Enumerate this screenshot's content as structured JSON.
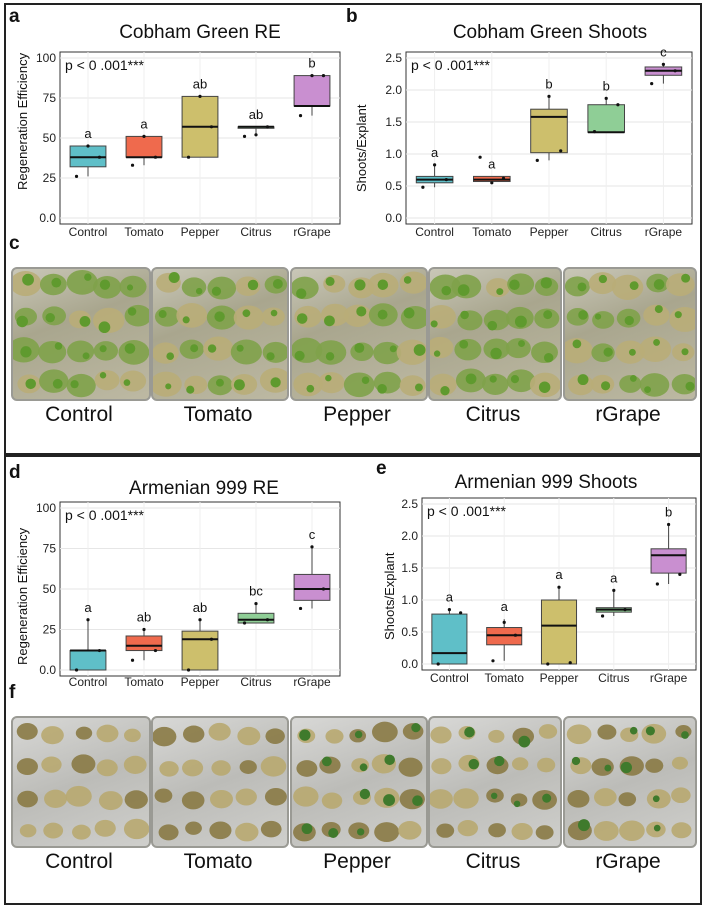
{
  "panels": {
    "top_labels": [
      "a",
      "b",
      "c"
    ],
    "bottom_labels": [
      "d",
      "e",
      "f"
    ]
  },
  "photo_rows": [
    {
      "labels": [
        "Control",
        "Tomato",
        "Pepper",
        "Citrus",
        "rGrape"
      ]
    },
    {
      "labels": [
        "Control",
        "Tomato",
        "Pepper",
        "Citrus",
        "rGrape"
      ]
    }
  ],
  "chart_data": [
    {
      "type": "box",
      "title": "Cobham Green RE",
      "ylabel": "Regeneration Efficiency",
      "xlabel": "",
      "annotation": "p < 0 .001***",
      "ylim": [
        0,
        100
      ],
      "yticks": [
        "0.0",
        "25",
        "50",
        "75",
        "100"
      ],
      "ytick_values": [
        0,
        25,
        50,
        75,
        100
      ],
      "categories": [
        "Control",
        "Tomato",
        "Pepper",
        "Citrus",
        "rGrape"
      ],
      "colors": [
        "#5fbfc8",
        "#ef6a4d",
        "#cdbf6c",
        "#8fce96",
        "#c98fd0"
      ],
      "letters": [
        "a",
        "a",
        "ab",
        "ab",
        "b"
      ],
      "boxes": [
        {
          "q1": 32,
          "median": 38,
          "q3": 45,
          "lo": 26,
          "hi": 45
        },
        {
          "q1": 38,
          "median": 38,
          "q3": 51,
          "lo": 33,
          "hi": 51
        },
        {
          "q1": 38,
          "median": 57,
          "q3": 76,
          "lo": 38,
          "hi": 76
        },
        {
          "q1": 57,
          "median": 57,
          "q3": 57,
          "lo": 51,
          "hi": 57
        },
        {
          "q1": 70,
          "median": 70,
          "q3": 89,
          "lo": 64,
          "hi": 89
        }
      ],
      "points": [
        [
          26,
          45,
          38
        ],
        [
          33,
          51,
          38
        ],
        [
          38,
          76,
          57
        ],
        [
          51,
          52,
          57
        ],
        [
          64,
          89,
          89
        ]
      ]
    },
    {
      "type": "box",
      "title": "Cobham Green Shoots",
      "ylabel": "Shoots/Explant",
      "xlabel": "",
      "annotation": "p < 0 .001***",
      "ylim": [
        0,
        2.5
      ],
      "yticks": [
        "0.0",
        "0.5",
        "1.0",
        "1.5",
        "2.0",
        "2.5"
      ],
      "ytick_values": [
        0,
        0.5,
        1.0,
        1.5,
        2.0,
        2.5
      ],
      "categories": [
        "Control",
        "Tomato",
        "Pepper",
        "Citrus",
        "rGrape"
      ],
      "colors": [
        "#5fbfc8",
        "#ef6a4d",
        "#cdbf6c",
        "#8fce96",
        "#c98fd0"
      ],
      "letters": [
        "a",
        "a",
        "b",
        "b",
        "c"
      ],
      "boxes": [
        {
          "q1": 0.55,
          "median": 0.6,
          "q3": 0.65,
          "lo": 0.48,
          "hi": 0.83
        },
        {
          "q1": 0.57,
          "median": 0.6,
          "q3": 0.65,
          "lo": 0.55,
          "hi": 0.65
        },
        {
          "q1": 1.02,
          "median": 1.58,
          "q3": 1.7,
          "lo": 0.9,
          "hi": 1.9
        },
        {
          "q1": 1.34,
          "median": 1.34,
          "q3": 1.77,
          "lo": 1.34,
          "hi": 1.87
        },
        {
          "q1": 2.23,
          "median": 2.3,
          "q3": 2.36,
          "lo": 2.1,
          "hi": 2.4
        }
      ],
      "points": [
        [
          0.48,
          0.83,
          0.6
        ],
        [
          0.95,
          0.55,
          0.62
        ],
        [
          0.9,
          1.9,
          1.05
        ],
        [
          1.35,
          1.87,
          1.77
        ],
        [
          2.1,
          2.4,
          2.3
        ]
      ]
    },
    {
      "type": "box",
      "title": "Armenian 999 RE",
      "ylabel": "Regeneration Efficiency",
      "xlabel": "",
      "annotation": "p < 0 .001***",
      "ylim": [
        0,
        100
      ],
      "yticks": [
        "0.0",
        "25",
        "50",
        "75",
        "100"
      ],
      "ytick_values": [
        0,
        25,
        50,
        75,
        100
      ],
      "categories": [
        "Control",
        "Tomato",
        "Pepper",
        "Citrus",
        "rGrape"
      ],
      "colors": [
        "#5fbfc8",
        "#ef6a4d",
        "#cdbf6c",
        "#8fce96",
        "#c98fd0"
      ],
      "letters": [
        "a",
        "ab",
        "ab",
        "bc",
        "c"
      ],
      "boxes": [
        {
          "q1": 0,
          "median": 12,
          "q3": 12,
          "lo": 0,
          "hi": 31
        },
        {
          "q1": 12,
          "median": 15,
          "q3": 21,
          "lo": 6,
          "hi": 25
        },
        {
          "q1": 0,
          "median": 19,
          "q3": 24,
          "lo": 0,
          "hi": 31
        },
        {
          "q1": 29,
          "median": 31,
          "q3": 35,
          "lo": 29,
          "hi": 41
        },
        {
          "q1": 43,
          "median": 50,
          "q3": 59,
          "lo": 38,
          "hi": 76
        }
      ],
      "points": [
        [
          0,
          31,
          12
        ],
        [
          6,
          25,
          12
        ],
        [
          0,
          31,
          19
        ],
        [
          29,
          41,
          31
        ],
        [
          38,
          76,
          50
        ]
      ]
    },
    {
      "type": "box",
      "title": "Armenian 999 Shoots",
      "ylabel": "Shoots/Explant",
      "xlabel": "",
      "annotation": "p < 0 .001***",
      "ylim": [
        0,
        2.5
      ],
      "yticks": [
        "0.0",
        "0.5",
        "1.0",
        "1.5",
        "2.0",
        "2.5"
      ],
      "ytick_values": [
        0,
        0.5,
        1.0,
        1.5,
        2.0,
        2.5
      ],
      "categories": [
        "Control",
        "Tomato",
        "Pepper",
        "Citrus",
        "rGrape"
      ],
      "colors": [
        "#5fbfc8",
        "#ef6a4d",
        "#cdbf6c",
        "#8fce96",
        "#c98fd0"
      ],
      "letters": [
        "a",
        "a",
        "a",
        "a",
        "b"
      ],
      "boxes": [
        {
          "q1": 0,
          "median": 0.17,
          "q3": 0.78,
          "lo": 0,
          "hi": 0.85
        },
        {
          "q1": 0.3,
          "median": 0.45,
          "q3": 0.57,
          "lo": 0.05,
          "hi": 0.7
        },
        {
          "q1": 0,
          "median": 0.6,
          "q3": 1.0,
          "lo": 0,
          "hi": 1.2
        },
        {
          "q1": 0.81,
          "median": 0.85,
          "q3": 0.88,
          "lo": 0.75,
          "hi": 1.15
        },
        {
          "q1": 1.42,
          "median": 1.7,
          "q3": 1.8,
          "lo": 1.25,
          "hi": 2.18
        }
      ],
      "points": [
        [
          0,
          0.85,
          0.8
        ],
        [
          0.05,
          0.65,
          0.45
        ],
        [
          0,
          1.2,
          0.02
        ],
        [
          0.75,
          1.15,
          0.85
        ],
        [
          1.25,
          2.18,
          1.4
        ]
      ]
    }
  ]
}
